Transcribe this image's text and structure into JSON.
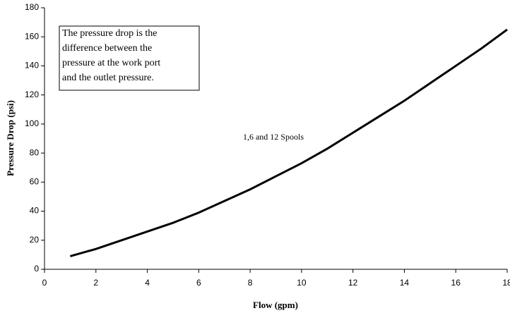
{
  "chart_data": {
    "type": "line",
    "xlabel": "Flow (gpm)",
    "ylabel": "Pressure Drop (psi)",
    "annotations": {
      "box": [
        "The pressure drop is the",
        "difference between the",
        "pressure at the work port",
        "and the outlet pressure."
      ],
      "curve_label": "1,6 and 12 Spools"
    },
    "series": [
      {
        "name": "1,6 and 12 Spools",
        "color": "#000000",
        "x": [
          1,
          2,
          3,
          4,
          5,
          6,
          7,
          8,
          9,
          10,
          11,
          12,
          13,
          14,
          15,
          16,
          17,
          18
        ],
        "values": [
          9,
          14,
          20,
          26,
          32,
          39,
          47,
          55,
          64,
          73,
          83,
          94,
          105,
          116,
          128,
          140,
          152,
          165
        ]
      }
    ],
    "xlim": [
      0,
      18
    ],
    "xticks": [
      0,
      2,
      4,
      6,
      8,
      10,
      12,
      14,
      16,
      18
    ],
    "ylim": [
      0,
      180
    ],
    "yticks": [
      0,
      20,
      40,
      60,
      80,
      100,
      120,
      140,
      160,
      180
    ],
    "grid": false
  }
}
